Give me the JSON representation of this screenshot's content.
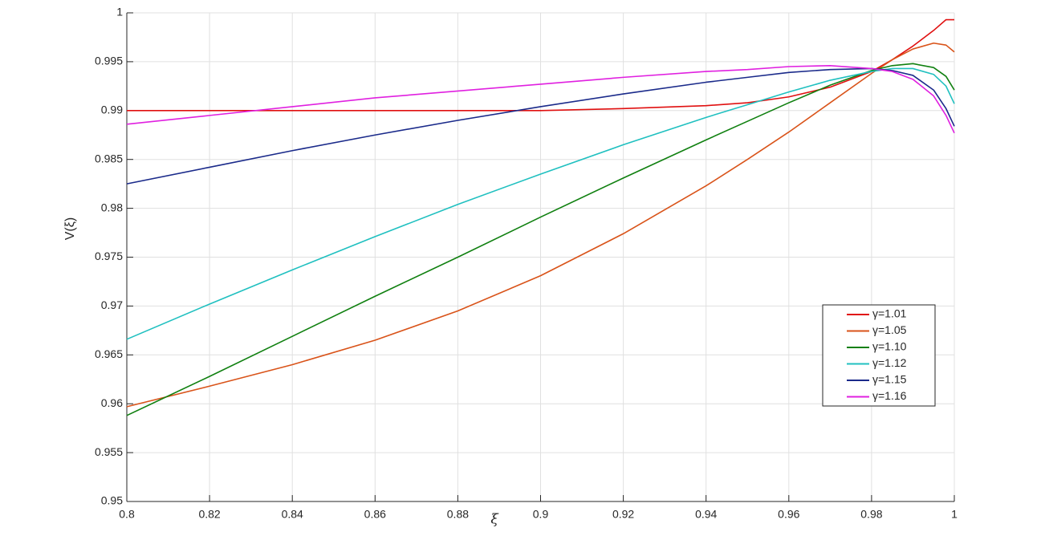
{
  "chart_data": {
    "type": "line",
    "xlabel": "ξ",
    "ylabel": "V(ξ)",
    "x": [
      0.8,
      0.82,
      0.84,
      0.86,
      0.88,
      0.9,
      0.92,
      0.94,
      0.95,
      0.96,
      0.97,
      0.98,
      0.985,
      0.99,
      0.995,
      0.998,
      1.0
    ],
    "series": [
      {
        "name": "γ=1.01",
        "color": "#e01010",
        "values": [
          0.99,
          0.99,
          0.99,
          0.99,
          0.99,
          0.99,
          0.9902,
          0.9905,
          0.9908,
          0.9914,
          0.9924,
          0.994,
          0.9952,
          0.9966,
          0.9982,
          0.9993,
          0.9993
        ]
      },
      {
        "name": "γ=1.05",
        "color": "#d95319",
        "values": [
          0.9597,
          0.9618,
          0.964,
          0.9665,
          0.9695,
          0.9731,
          0.9774,
          0.9823,
          0.985,
          0.9878,
          0.9908,
          0.9938,
          0.9952,
          0.9963,
          0.9969,
          0.9967,
          0.996
        ]
      },
      {
        "name": "γ=1.10",
        "color": "#108010",
        "values": [
          0.9588,
          0.9628,
          0.9669,
          0.971,
          0.975,
          0.9791,
          0.9831,
          0.987,
          0.9889,
          0.9908,
          0.9926,
          0.9941,
          0.9946,
          0.9948,
          0.9944,
          0.9935,
          0.9921
        ]
      },
      {
        "name": "γ=1.12",
        "color": "#20c0c0",
        "values": [
          0.9666,
          0.9702,
          0.9737,
          0.9771,
          0.9804,
          0.9835,
          0.9865,
          0.9893,
          0.9906,
          0.9919,
          0.9931,
          0.994,
          0.9943,
          0.9943,
          0.9937,
          0.9925,
          0.9907
        ]
      },
      {
        "name": "γ=1.15",
        "color": "#1a2a8a",
        "values": [
          0.9825,
          0.9842,
          0.9859,
          0.9875,
          0.989,
          0.9904,
          0.9917,
          0.9929,
          0.9934,
          0.9939,
          0.9942,
          0.9943,
          0.9941,
          0.9936,
          0.9921,
          0.9902,
          0.9884
        ]
      },
      {
        "name": "γ=1.16",
        "color": "#e020e0",
        "values": [
          0.9886,
          0.9895,
          0.9904,
          0.9913,
          0.992,
          0.9927,
          0.9934,
          0.994,
          0.9942,
          0.9945,
          0.9946,
          0.9943,
          0.994,
          0.9932,
          0.9915,
          0.9895,
          0.9877
        ]
      }
    ],
    "xlim": [
      0.8,
      1
    ],
    "xticks": [
      0.8,
      0.82,
      0.84,
      0.86,
      0.88,
      0.9,
      0.92,
      0.94,
      0.96,
      0.98,
      1
    ],
    "ylim": [
      0.95,
      1
    ],
    "yticks": [
      0.95,
      0.955,
      0.96,
      0.965,
      0.97,
      0.975,
      0.98,
      0.985,
      0.99,
      0.995,
      1
    ],
    "grid": true,
    "legend": "lower right"
  }
}
